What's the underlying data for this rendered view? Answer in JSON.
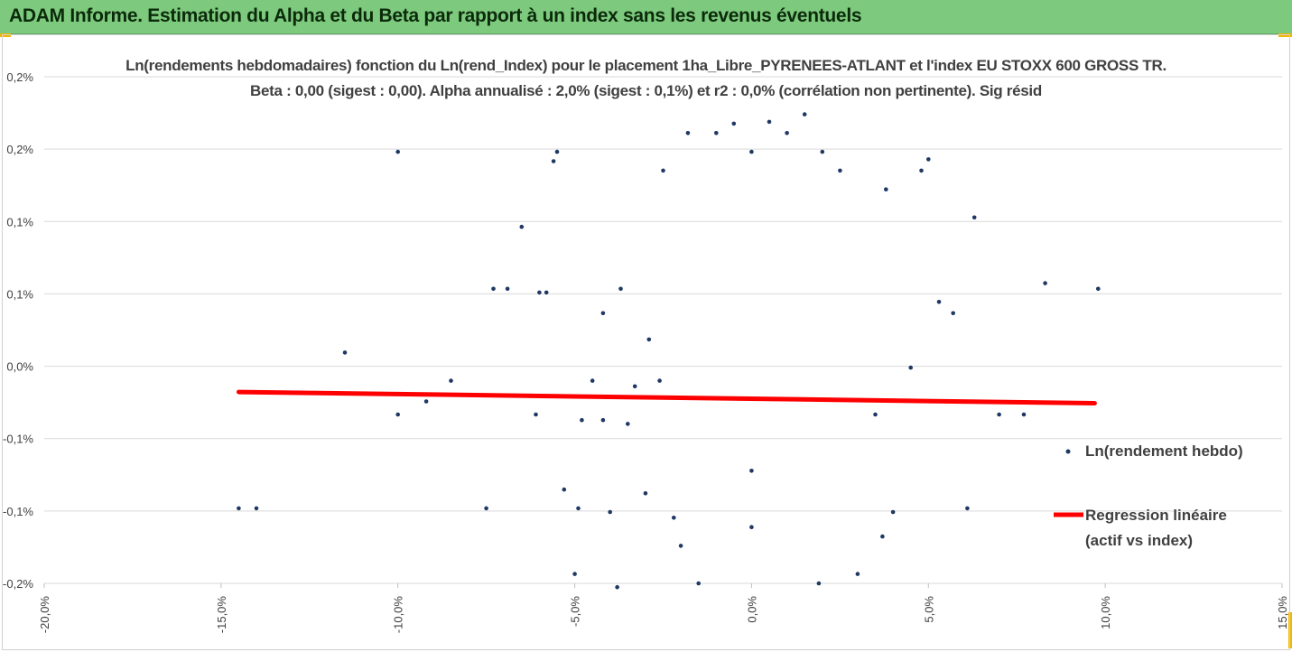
{
  "header": {
    "title": "ADAM Informe. Estimation du Alpha et du Beta par rapport à un index sans les revenus éventuels"
  },
  "colors": {
    "header_bg": "#7dc97d",
    "points": "#1f3864",
    "regression": "#ff0000",
    "grid": "#d9d9d9",
    "corner_accent": "#f2b600"
  },
  "chart_data": {
    "type": "scatter",
    "title": "Ln(rendements hebdomadaires) fonction du Ln(rend_Index) pour le placement 1ha_Libre_PYRENEES-ATLANT et l'index EU STOXX 600 GROSS TR.",
    "subtitle": "Beta : 0,00 (sigest : 0,00). Alpha annualisé : 2,0% (sigest : 0,1%) et r2 : 0,0% (corrélation non pertinente). Sig résid",
    "xlabel": "",
    "ylabel": "",
    "x_ticks": [
      "-20,0%",
      "-15,0%",
      "-10,0%",
      "-5,0%",
      "0,0%",
      "5,0%",
      "10,0%",
      "15,0%"
    ],
    "xlim": [
      -20,
      15
    ],
    "y_ticks": [
      "0,2%",
      "0,2%",
      "0,1%",
      "0,1%",
      "0,0%",
      "-0,1%",
      "-0,1%",
      "-0,2%"
    ],
    "ylim": [
      -0.06,
      0.21
    ],
    "grid": "horizontal",
    "legend_position": "right",
    "series": [
      {
        "name": "Ln(rendement hebdo)",
        "kind": "scatter",
        "points": [
          [
            -14.5,
            -0.02
          ],
          [
            -14.0,
            -0.02
          ],
          [
            -11.5,
            0.063
          ],
          [
            -10.0,
            0.17
          ],
          [
            -10.0,
            0.03
          ],
          [
            -9.2,
            0.037
          ],
          [
            -8.5,
            0.048
          ],
          [
            -7.5,
            -0.02
          ],
          [
            -7.3,
            0.097
          ],
          [
            -6.9,
            0.097
          ],
          [
            -6.5,
            0.13
          ],
          [
            -6.3,
            0.04
          ],
          [
            -6.1,
            0.03
          ],
          [
            -6.0,
            0.095
          ],
          [
            -5.8,
            0.095
          ],
          [
            -5.6,
            0.165
          ],
          [
            -5.5,
            0.17
          ],
          [
            -5.3,
            -0.01
          ],
          [
            -5.0,
            -0.055
          ],
          [
            -4.9,
            -0.02
          ],
          [
            -4.8,
            0.027
          ],
          [
            -4.5,
            0.048
          ],
          [
            -4.2,
            0.084
          ],
          [
            -4.0,
            -0.022
          ],
          [
            -3.8,
            -0.062
          ],
          [
            -3.7,
            0.097
          ],
          [
            -3.5,
            0.025
          ],
          [
            -3.3,
            0.045
          ],
          [
            -3.0,
            -0.012
          ],
          [
            -2.9,
            0.07
          ],
          [
            -2.5,
            0.16
          ],
          [
            -2.2,
            -0.025
          ],
          [
            -2.0,
            -0.04
          ],
          [
            -1.8,
            0.18
          ],
          [
            -1.5,
            -0.06
          ],
          [
            -1.0,
            0.18
          ],
          [
            -0.5,
            0.185
          ],
          [
            0.0,
            0.17
          ],
          [
            0.0,
            0.0
          ],
          [
            0.0,
            -0.03
          ],
          [
            0.5,
            0.186
          ],
          [
            1.0,
            0.18
          ],
          [
            1.5,
            0.19
          ],
          [
            2.0,
            0.17
          ],
          [
            2.5,
            0.16
          ],
          [
            3.0,
            -0.055
          ],
          [
            3.5,
            0.03
          ],
          [
            3.8,
            0.15
          ],
          [
            4.0,
            -0.022
          ],
          [
            4.5,
            0.055
          ],
          [
            4.8,
            0.16
          ],
          [
            5.0,
            0.166
          ],
          [
            5.3,
            0.09
          ],
          [
            5.7,
            0.084
          ],
          [
            6.1,
            -0.02
          ],
          [
            6.3,
            0.135
          ],
          [
            7.0,
            0.03
          ],
          [
            7.7,
            0.03
          ],
          [
            8.3,
            0.1
          ],
          [
            9.8,
            0.097
          ],
          [
            3.7,
            -0.035
          ],
          [
            -4.2,
            0.027
          ],
          [
            -2.6,
            0.048
          ],
          [
            1.9,
            -0.06
          ]
        ]
      },
      {
        "name": "Regression linéaire",
        "name_line2": "(actif vs index)",
        "kind": "line",
        "x": [
          -14.5,
          9.7
        ],
        "y": [
          0.042,
          0.036
        ]
      }
    ]
  }
}
